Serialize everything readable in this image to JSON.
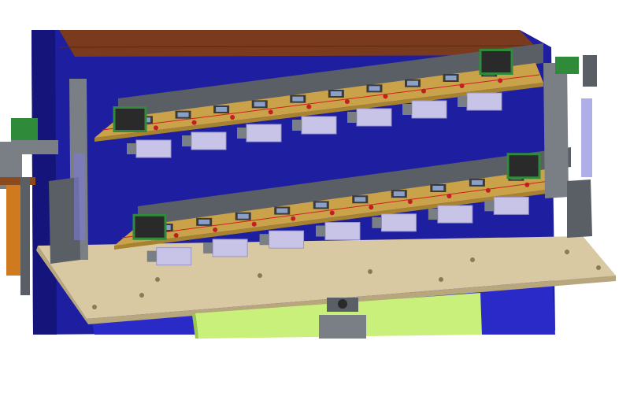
{
  "scene": {
    "kind": "cad-3d-assembly-render",
    "colors": {
      "background": "#ffffff",
      "frame_blue": "#1e1ea0",
      "frame_blue_dark": "#14147a",
      "frame_blue_light": "#2a2ac8",
      "top_red": "#7a3a1e",
      "base_plate": "#d8c9a2",
      "base_plate_edge": "#b8a67c",
      "rail_grey": "#7a7f86",
      "rail_grey_dark": "#5a5f66",
      "board_tan": "#c9a24a",
      "board_tan_dark": "#a8832f",
      "pcb_green": "#2f8a3a",
      "lilac_block": "#c8c4e8",
      "lilac_dark": "#9a94c8",
      "green_pad": "#c8f07a",
      "green_pad_dark": "#9ac84a",
      "brown_bar": "#8a4a1e",
      "orange_side": "#d07a20"
    },
    "upper_unit": {
      "pockets": 10,
      "lilac_blocks": 7
    },
    "lower_unit": {
      "pockets": 10,
      "lilac_blocks": 7
    }
  }
}
